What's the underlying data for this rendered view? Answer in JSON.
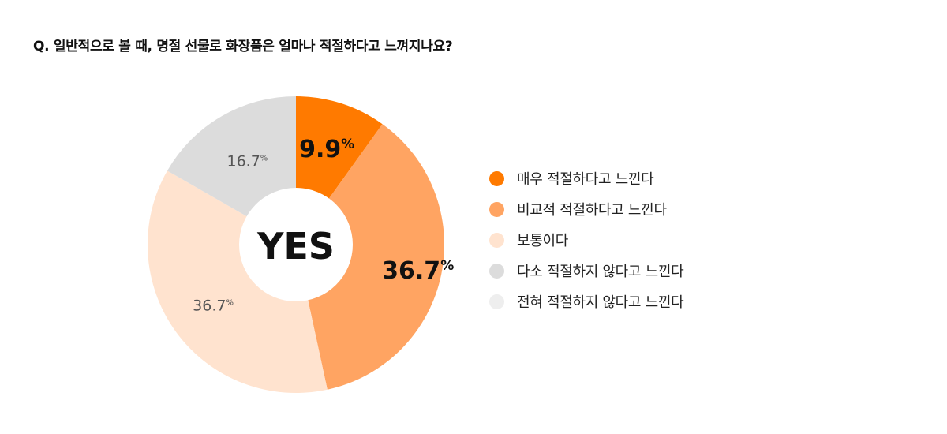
{
  "question": "Q. 일반적으로 볼 때, 명절 선물로 화장품은 얼마나 적절하다고 느껴지나요?",
  "chart_data": {
    "type": "pie",
    "variant": "donut",
    "center_label": "YES",
    "unit": "%",
    "categories": [
      "매우 적절하다고 느낀다",
      "비교적 적절하다고 느낀다",
      "보통이다",
      "다소 적절하지 않다고 느낀다",
      "전혀 적절하지 않다고 느낀다"
    ],
    "values": [
      9.9,
      36.7,
      36.7,
      16.7,
      0
    ],
    "value_labels": [
      "9.9",
      "36.7",
      "36.7",
      "16.7",
      ""
    ],
    "colors": [
      "#ff7a00",
      "#ffa462",
      "#ffe3cf",
      "#dcdcdc",
      "#eeeeee"
    ],
    "legend_position": "right"
  }
}
